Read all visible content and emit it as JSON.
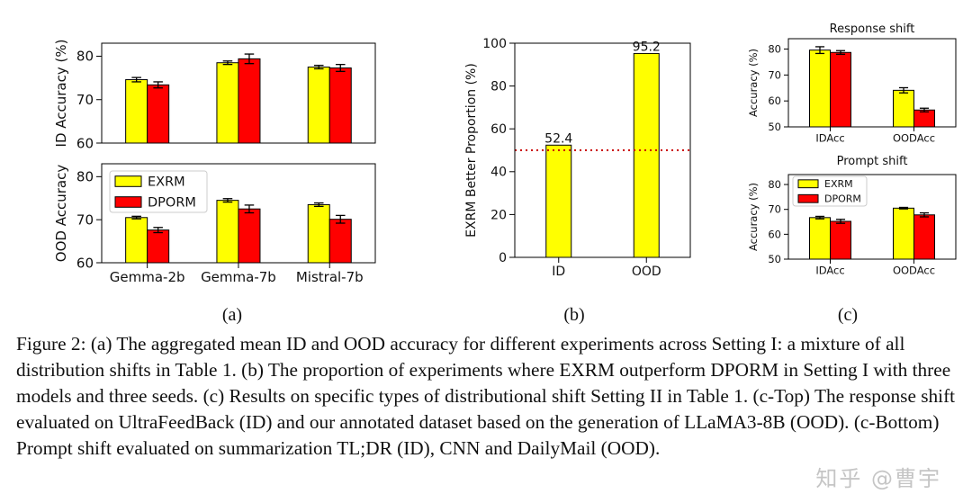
{
  "colors": {
    "exrm": "#ffff00",
    "dporm": "#ff0000",
    "dashed": "#cc0000"
  },
  "sublabels": [
    "(a)",
    "(b)",
    "(c)"
  ],
  "caption": "Figure 2: (a) The aggregated mean ID and OOD accuracy for different experiments across Setting I: a mixture of all distribution shifts in Table 1. (b) The proportion of experiments where EXRM outperform DPORM in Setting I with three models and three seeds. (c) Results on specific types of distributional shift Setting II in Table 1. (c-Top) The response shift evaluated on UltraFeedBack (ID) and our annotated dataset based on the generation of LLaMA3-8B (OOD). (c-Bottom) Prompt shift evaluated on summarization TL;DR (ID), CNN and DailyMail (OOD).",
  "watermark": "知乎 @曹宇",
  "chart_data": [
    {
      "id": "a-top",
      "type": "bar",
      "categories": [
        "Gemma-2b",
        "Gemma-7b",
        "Mistral-7b"
      ],
      "ylabel": "ID Accuracy (%)",
      "ylim": [
        60,
        83
      ],
      "yticks": [
        60,
        70,
        80
      ],
      "show_xticks": false,
      "series": [
        {
          "name": "EXRM",
          "values": [
            74.6,
            78.5,
            77.5
          ],
          "errors": [
            0.5,
            0.4,
            0.4
          ]
        },
        {
          "name": "DPORM",
          "values": [
            73.4,
            79.4,
            77.3
          ],
          "errors": [
            0.7,
            1.1,
            0.8
          ]
        }
      ]
    },
    {
      "id": "a-bottom",
      "type": "bar",
      "categories": [
        "Gemma-2b",
        "Gemma-7b",
        "Mistral-7b"
      ],
      "ylabel": "OOD Accuracy",
      "ylim": [
        60,
        83
      ],
      "yticks": [
        60,
        70,
        80
      ],
      "show_xticks": true,
      "legend": "top-left",
      "series": [
        {
          "name": "EXRM",
          "values": [
            70.5,
            74.5,
            73.5
          ],
          "errors": [
            0.3,
            0.4,
            0.4
          ]
        },
        {
          "name": "DPORM",
          "values": [
            67.6,
            72.5,
            70.1
          ],
          "errors": [
            0.6,
            0.9,
            0.9
          ]
        }
      ]
    },
    {
      "id": "b",
      "type": "bar",
      "categories": [
        "ID",
        "OOD"
      ],
      "ylabel": "EXRM Better Proportion (%)",
      "ylim": [
        0,
        100
      ],
      "yticks": [
        0,
        20,
        40,
        60,
        80,
        100
      ],
      "show_xticks": true,
      "series": [
        {
          "name": "",
          "values": [
            52.4,
            95.2
          ]
        }
      ],
      "data_labels": [
        "52.4",
        "95.2"
      ],
      "hline": 50
    },
    {
      "id": "c-top",
      "type": "bar",
      "title": "Response shift",
      "categories": [
        "IDAcc",
        "OODAcc"
      ],
      "ylabel": "Accuracy (%)",
      "ylim": [
        50,
        84
      ],
      "yticks": [
        50,
        60,
        70,
        80
      ],
      "show_xticks": true,
      "series": [
        {
          "name": "EXRM",
          "values": [
            79.6,
            64.1
          ],
          "errors": [
            1.3,
            1.0
          ]
        },
        {
          "name": "DPORM",
          "values": [
            78.7,
            56.5
          ],
          "errors": [
            0.7,
            0.7
          ]
        }
      ]
    },
    {
      "id": "c-bottom",
      "type": "bar",
      "title": "Prompt shift",
      "categories": [
        "IDAcc",
        "OODAcc"
      ],
      "ylabel": "Accuracy (%)",
      "ylim": [
        50,
        84
      ],
      "yticks": [
        50,
        60,
        70,
        80
      ],
      "show_xticks": true,
      "legend": "top-left",
      "series": [
        {
          "name": "EXRM",
          "values": [
            66.7,
            70.5
          ],
          "errors": [
            0.5,
            0.3
          ]
        },
        {
          "name": "DPORM",
          "values": [
            65.2,
            67.8
          ],
          "errors": [
            0.8,
            0.8
          ]
        }
      ]
    }
  ]
}
